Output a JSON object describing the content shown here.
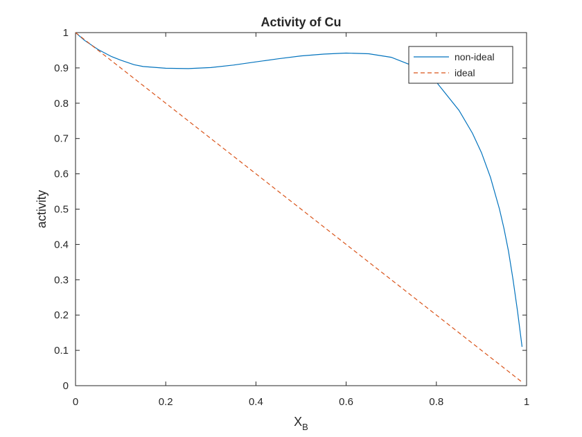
{
  "chart_data": {
    "type": "line",
    "title": "Activity of Cu",
    "xlabel": "X",
    "xlabel_subscript": "B",
    "ylabel": "activity",
    "xlim": [
      0,
      1
    ],
    "ylim": [
      0,
      1
    ],
    "xticks": [
      0,
      0.2,
      0.4,
      0.6,
      0.8,
      1
    ],
    "xtick_labels": [
      "0",
      "0.2",
      "0.4",
      "0.6",
      "0.8",
      "1"
    ],
    "yticks": [
      0,
      0.1,
      0.2,
      0.3,
      0.4,
      0.5,
      0.6,
      0.7,
      0.8,
      0.9,
      1
    ],
    "ytick_labels": [
      "0",
      "0.1",
      "0.2",
      "0.3",
      "0.4",
      "0.5",
      "0.6",
      "0.7",
      "0.8",
      "0.9",
      "1"
    ],
    "grid": false,
    "legend_position": "top-right",
    "series": [
      {
        "name": "non-ideal",
        "style": "solid",
        "color": "#0072BD",
        "x": [
          0,
          0.02,
          0.05,
          0.08,
          0.1,
          0.13,
          0.15,
          0.2,
          0.25,
          0.3,
          0.35,
          0.4,
          0.45,
          0.5,
          0.55,
          0.6,
          0.65,
          0.7,
          0.75,
          0.8,
          0.85,
          0.88,
          0.9,
          0.92,
          0.94,
          0.95,
          0.96,
          0.97,
          0.98,
          0.99
        ],
        "y": [
          1.0,
          0.978,
          0.952,
          0.932,
          0.922,
          0.909,
          0.904,
          0.899,
          0.898,
          0.901,
          0.908,
          0.917,
          0.926,
          0.934,
          0.939,
          0.942,
          0.94,
          0.93,
          0.905,
          0.86,
          0.78,
          0.715,
          0.66,
          0.59,
          0.5,
          0.445,
          0.38,
          0.3,
          0.21,
          0.11
        ]
      },
      {
        "name": "ideal",
        "style": "dashed",
        "color": "#D95319",
        "x": [
          0,
          0.99
        ],
        "y": [
          1.0,
          0.01
        ]
      }
    ]
  }
}
